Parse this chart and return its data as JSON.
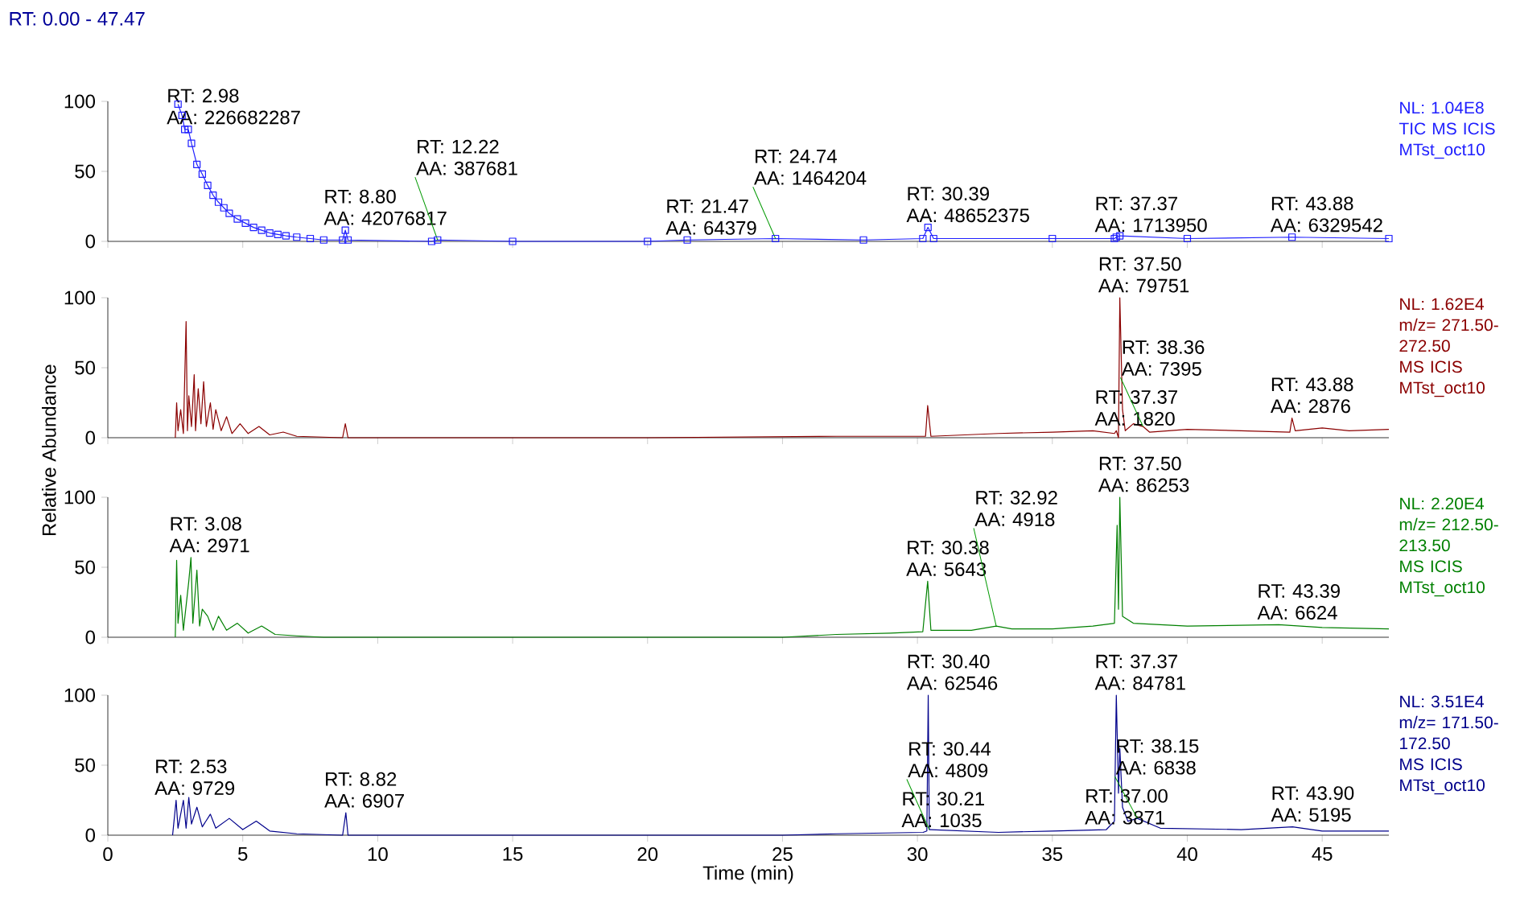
{
  "chart_data": [
    {
      "type": "line",
      "title": "RT: 0.00 - 47.47",
      "marker": "square",
      "x": [
        2.6,
        2.75,
        2.85,
        2.98,
        3.1,
        3.3,
        3.5,
        3.7,
        3.9,
        4.1,
        4.3,
        4.5,
        4.8,
        5.1,
        5.4,
        5.7,
        6.0,
        6.3,
        6.6,
        7.0,
        7.5,
        8.0,
        8.7,
        8.8,
        8.9,
        12.0,
        12.22,
        15.0,
        20.0,
        21.47,
        24.74,
        28.0,
        30.2,
        30.39,
        30.6,
        35.0,
        37.3,
        37.37,
        37.5,
        40.0,
        43.88,
        47.47
      ],
      "series": [
        {
          "color": "#1f1fff",
          "values": [
            98,
            90,
            80,
            80,
            70,
            55,
            48,
            40,
            33,
            28,
            24,
            20,
            16,
            13,
            10,
            8,
            6,
            5,
            4,
            3,
            2,
            1,
            1,
            8,
            1,
            0,
            1,
            0,
            0,
            1,
            2,
            1,
            2,
            10,
            2,
            2,
            2,
            3,
            4,
            2,
            3,
            2
          ]
        }
      ],
      "xlim": [
        0,
        47.47
      ],
      "ylim": [
        0,
        100
      ],
      "xticks": [
        0,
        5,
        10,
        15,
        20,
        25,
        30,
        35,
        40,
        45
      ],
      "yticks": [
        0,
        50,
        100
      ],
      "tick_labels": "y",
      "annotations": [
        "NL: 1.04E8 TIC MS ICIS MTst_oct10",
        {
          "text": "RT: 2.98 AA: 226682287",
          "x": 2.98,
          "y": 80
        },
        {
          "text": "RT: 8.80 AA: 42076817",
          "x": 8.8,
          "y": 8
        },
        {
          "text": "RT: 12.22 AA: 387681",
          "x": 12.22,
          "y": 1
        },
        {
          "text": "RT: 21.47 AA: 64379",
          "x": 21.47,
          "y": 1
        },
        {
          "text": "RT: 24.74 AA: 1464204",
          "x": 24.74,
          "y": 2
        },
        {
          "text": "RT: 30.39 AA: 48652375",
          "x": 30.39,
          "y": 10
        },
        {
          "text": "RT: 37.37 AA: 1713950",
          "x": 37.37,
          "y": 3
        },
        {
          "text": "RT: 43.88 AA: 6329542",
          "x": 43.88,
          "y": 3
        }
      ]
    },
    {
      "type": "line",
      "ylabel": "Relative Abundance",
      "x": [
        2.5,
        2.55,
        2.6,
        2.7,
        2.8,
        2.9,
        2.95,
        3.0,
        3.1,
        3.2,
        3.25,
        3.35,
        3.45,
        3.55,
        3.65,
        3.8,
        3.9,
        4.0,
        4.2,
        4.4,
        4.6,
        4.9,
        5.2,
        5.6,
        6.0,
        6.5,
        7.0,
        8.7,
        8.8,
        8.9,
        20.0,
        27.0,
        30.3,
        30.38,
        30.5,
        33.0,
        35.0,
        36.5,
        37.3,
        37.37,
        37.45,
        37.5,
        37.6,
        37.7,
        38.0,
        38.36,
        38.6,
        40.0,
        42.0,
        43.8,
        43.88,
        44.0,
        45.0,
        46.0,
        47.47
      ],
      "series": [
        {
          "color": "#8b0000",
          "values": [
            0,
            25,
            5,
            20,
            3,
            83,
            5,
            30,
            8,
            45,
            5,
            35,
            10,
            40,
            8,
            25,
            6,
            20,
            5,
            15,
            3,
            10,
            3,
            8,
            2,
            4,
            1,
            0,
            10,
            0,
            0,
            1,
            1,
            23,
            1,
            3,
            4,
            5,
            3,
            5,
            0,
            100,
            20,
            5,
            10,
            8,
            4,
            6,
            5,
            4,
            14,
            5,
            7,
            5,
            6
          ]
        }
      ],
      "xlim": [
        0,
        47.47
      ],
      "ylim": [
        0,
        100
      ],
      "xticks": [
        0,
        5,
        10,
        15,
        20,
        25,
        30,
        35,
        40,
        45
      ],
      "yticks": [
        0,
        50,
        100
      ],
      "tick_labels": "y",
      "annotations": [
        "NL: 1.62E4 m/z= 271.50-272.50 MS ICIS MTst_oct10",
        {
          "text": "RT: 37.37 AA: 1820",
          "x": 37.37,
          "y": 5
        },
        {
          "text": "RT: 37.50 AA: 79751",
          "x": 37.5,
          "y": 100
        },
        {
          "text": "RT: 38.36 AA: 7395",
          "x": 38.36,
          "y": 8
        },
        {
          "text": "RT: 43.88 AA: 2876",
          "x": 43.88,
          "y": 14
        }
      ]
    },
    {
      "type": "line",
      "x": [
        2.5,
        2.55,
        2.6,
        2.7,
        2.8,
        3.0,
        3.08,
        3.15,
        3.3,
        3.4,
        3.5,
        3.7,
        3.9,
        4.1,
        4.4,
        4.8,
        5.2,
        5.7,
        6.2,
        7.0,
        8.0,
        25.0,
        27.0,
        29.0,
        30.2,
        30.38,
        30.5,
        32.0,
        32.92,
        33.5,
        35.0,
        36.5,
        37.3,
        37.4,
        37.45,
        37.5,
        37.6,
        38.0,
        40.0,
        43.39,
        45.0,
        47.47
      ],
      "series": [
        {
          "color": "#008000",
          "values": [
            0,
            55,
            10,
            30,
            5,
            40,
            57,
            10,
            48,
            8,
            20,
            15,
            5,
            15,
            5,
            10,
            3,
            8,
            2,
            1,
            0,
            0,
            2,
            3,
            4,
            40,
            5,
            5,
            8,
            6,
            6,
            8,
            10,
            80,
            20,
            100,
            15,
            10,
            8,
            9,
            7,
            6
          ]
        }
      ],
      "xlim": [
        0,
        47.47
      ],
      "ylim": [
        0,
        100
      ],
      "xticks": [
        0,
        5,
        10,
        15,
        20,
        25,
        30,
        35,
        40,
        45
      ],
      "yticks": [
        0,
        50,
        100
      ],
      "tick_labels": "y",
      "annotations": [
        "NL: 2.20E4 m/z= 212.50-213.50 MS ICIS MTst_oct10",
        {
          "text": "RT: 3.08 AA: 2971",
          "x": 3.08,
          "y": 57
        },
        {
          "text": "RT: 30.38 AA: 5643",
          "x": 30.38,
          "y": 40
        },
        {
          "text": "RT: 32.92 AA: 4918",
          "x": 32.92,
          "y": 8
        },
        {
          "text": "RT: 37.50 AA: 86253",
          "x": 37.5,
          "y": 100
        },
        {
          "text": "RT: 43.39 AA: 6624",
          "x": 43.39,
          "y": 9
        }
      ]
    },
    {
      "type": "line",
      "xlabel": "Time (min)",
      "x": [
        2.4,
        2.53,
        2.6,
        2.8,
        2.9,
        3.0,
        3.1,
        3.3,
        3.5,
        3.8,
        4.0,
        4.5,
        5.0,
        5.5,
        6.0,
        7.0,
        8.7,
        8.82,
        8.9,
        25.0,
        27.0,
        30.21,
        30.35,
        30.4,
        30.44,
        30.5,
        33.0,
        35.0,
        37.0,
        37.3,
        37.37,
        37.45,
        37.5,
        37.6,
        37.8,
        38.15,
        39.0,
        42.0,
        43.9,
        45.0,
        47.47
      ],
      "series": [
        {
          "color": "#00008b",
          "values": [
            0,
            25,
            5,
            25,
            5,
            27,
            8,
            20,
            6,
            15,
            5,
            12,
            4,
            10,
            3,
            1,
            0,
            16,
            0,
            0,
            1,
            2,
            3,
            100,
            4,
            4,
            2,
            3,
            4,
            10,
            100,
            30,
            62,
            20,
            10,
            12,
            5,
            4,
            6,
            3,
            3
          ]
        }
      ],
      "xlim": [
        0,
        47.47
      ],
      "ylim": [
        0,
        100
      ],
      "xticks": [
        0,
        5,
        10,
        15,
        20,
        25,
        30,
        35,
        40,
        45
      ],
      "yticks": [
        0,
        50,
        100
      ],
      "annotations": [
        "NL: 3.51E4 m/z= 171.50-172.50 MS ICIS MTst_oct10",
        {
          "text": "RT: 2.53 AA: 9729",
          "x": 2.53,
          "y": 25
        },
        {
          "text": "RT: 8.82 AA: 6907",
          "x": 8.82,
          "y": 16
        },
        {
          "text": "RT: 30.21 AA: 1035",
          "x": 30.21,
          "y": 2
        },
        {
          "text": "RT: 30.40 AA: 62546",
          "x": 30.4,
          "y": 100
        },
        {
          "text": "RT: 30.44 AA: 4809",
          "x": 30.44,
          "y": 4
        },
        {
          "text": "RT: 37.00 AA: 3871",
          "x": 37.0,
          "y": 4
        },
        {
          "text": "RT: 37.37 AA: 84781",
          "x": 37.37,
          "y": 100
        },
        {
          "text": "RT: 38.15 AA: 6838",
          "x": 38.15,
          "y": 12
        },
        {
          "text": "RT: 43.90 AA: 5195",
          "x": 43.9,
          "y": 6
        }
      ]
    }
  ]
}
